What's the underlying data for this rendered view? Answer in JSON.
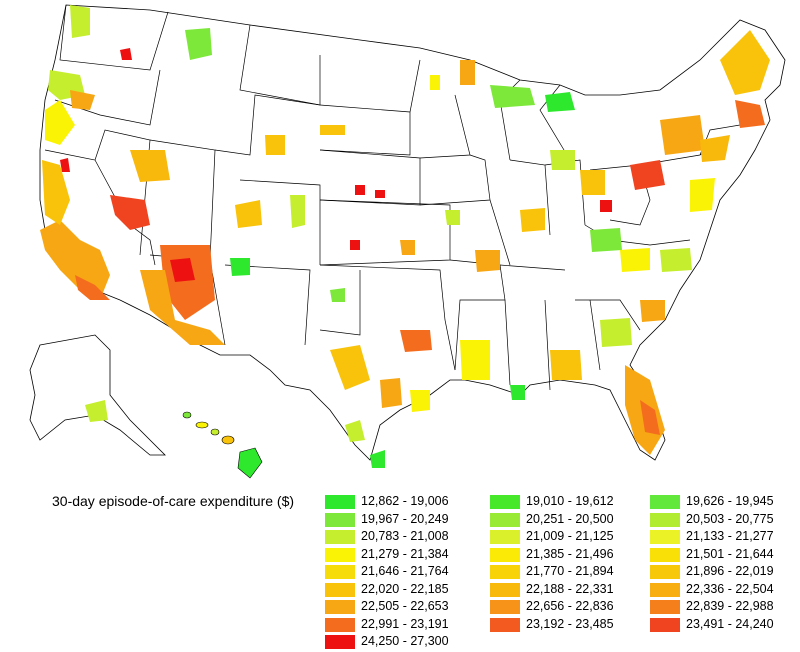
{
  "legend": {
    "title": "30-day episode-of-care expenditure ($)",
    "items": [
      {
        "range": "12,862 - 19,006",
        "color": "#2ee82e"
      },
      {
        "range": "19,967 - 20,249",
        "color": "#7de83a"
      },
      {
        "range": "20,783 - 21,008",
        "color": "#c5ee2e"
      },
      {
        "range": "21,279 - 21,384",
        "color": "#fbf305"
      },
      {
        "range": "21,646 - 21,764",
        "color": "#f6dc08"
      },
      {
        "range": "22,020 - 22,185",
        "color": "#f8c30a"
      },
      {
        "range": "22,505 - 22,653",
        "color": "#f7a713"
      },
      {
        "range": "22,991 - 23,191",
        "color": "#f46d1e"
      },
      {
        "range": "24,250 - 27,300",
        "color": "#ee1111"
      },
      {
        "range": "19,010 - 19,612",
        "color": "#47e82a"
      },
      {
        "range": "20,251 - 20,500",
        "color": "#99ea35"
      },
      {
        "range": "21,009 - 21,125",
        "color": "#d9f02a"
      },
      {
        "range": "21,385 - 21,496",
        "color": "#fbe906"
      },
      {
        "range": "21,770 - 21,894",
        "color": "#f8d307"
      },
      {
        "range": "22,188 - 22,331",
        "color": "#f8b80c"
      },
      {
        "range": "22,656 - 22,836",
        "color": "#f69318"
      },
      {
        "range": "23,192 - 23,485",
        "color": "#f25a20"
      },
      {
        "range": "19,626 - 19,945",
        "color": "#62e83a"
      },
      {
        "range": "20,503 - 20,775",
        "color": "#b1ec32"
      },
      {
        "range": "21,133 - 21,277",
        "color": "#ebf226"
      },
      {
        "range": "21,501 - 21,644",
        "color": "#f9e006"
      },
      {
        "range": "21,896 - 22,019",
        "color": "#f7c80a"
      },
      {
        "range": "22,336 - 22,504",
        "color": "#f8ae10"
      },
      {
        "range": "22,839 - 22,988",
        "color": "#f5801b"
      },
      {
        "range": "23,491 - 24,240",
        "color": "#f04420"
      }
    ]
  }
}
